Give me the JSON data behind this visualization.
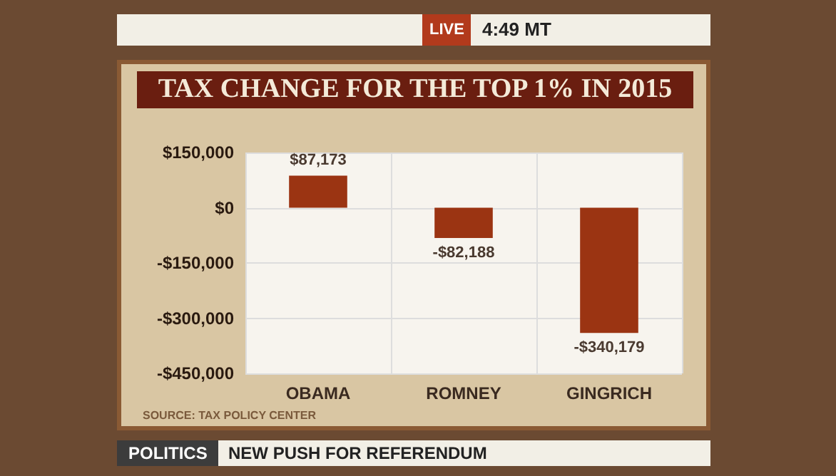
{
  "chart_data": {
    "type": "bar",
    "title": "TAX CHANGE FOR THE TOP 1% IN 2015",
    "categories": [
      "OBAMA",
      "ROMNEY",
      "GINGRICH"
    ],
    "values": [
      87173,
      -82188,
      -340179
    ],
    "value_labels": [
      "$87,173",
      "-$82,188",
      "-$340,179"
    ],
    "color": "#9b3412",
    "ylim": [
      -450000,
      150000
    ],
    "yticks": [
      {
        "value": 150000,
        "label": "$150,000"
      },
      {
        "value": 0,
        "label": "$0"
      },
      {
        "value": -150000,
        "label": "-$150,000"
      },
      {
        "value": -300000,
        "label": "-$300,000"
      },
      {
        "value": -450000,
        "label": "-$450,000"
      }
    ],
    "grid": true,
    "annotations": [
      "SOURCE: TAX POLICY CENTER",
      "LIVE",
      "4:49 MT",
      "POLITICS",
      "NEW PUSH FOR REFERENDUM"
    ]
  }
}
